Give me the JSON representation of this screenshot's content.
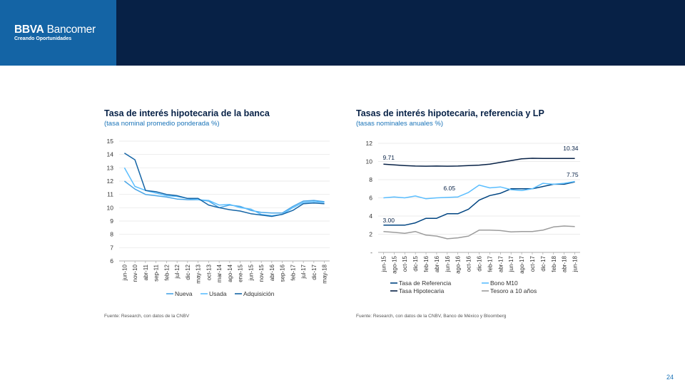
{
  "header": {
    "brand_bold": "BBVA",
    "brand_name": " Bancomer",
    "tagline": "Creando Oportunidades",
    "colors": {
      "bar": "#072146",
      "logo_bg": "#1464A5"
    }
  },
  "page_number": "24",
  "charts": [
    {
      "title": "Tasa de interés hipotecaria de la banca",
      "subtitle": "(tasa nominal  promedio ponderada %)",
      "source": "Fuente: Research, con datos de la CNBV",
      "chart_data": {
        "type": "line",
        "title": "Tasa de interés hipotecaria de la banca",
        "ylim": [
          6,
          15
        ],
        "yticks": [
          "6",
          "7",
          "8",
          "9",
          "10",
          "11",
          "12",
          "13",
          "14",
          "15"
        ],
        "categories": [
          "jun-10",
          "nov-10",
          "abr-11",
          "sep-11",
          "feb-12",
          "jul-12",
          "dic-12",
          "may-13",
          "oct-13",
          "mar-14",
          "ago-14",
          "ene-15",
          "jun-15",
          "nov-15",
          "abr-16",
          "sep-16",
          "feb-17",
          "jul-17",
          "dic-17",
          "may-18"
        ],
        "grid": true,
        "legend": "bottom",
        "series": [
          {
            "name": "Nueva",
            "color": "#49A5E6",
            "values": [
              12.0,
              11.4,
              11.0,
              10.9,
              10.8,
              10.65,
              10.6,
              10.6,
              10.5,
              10.0,
              10.2,
              10.1,
              9.8,
              9.65,
              9.6,
              9.6,
              10.1,
              10.5,
              10.55,
              10.45
            ]
          },
          {
            "name": "Usada",
            "color": "#5BBEFF",
            "values": [
              13.0,
              11.6,
              11.3,
              11.1,
              10.9,
              10.85,
              10.7,
              10.6,
              10.55,
              10.2,
              10.25,
              10.0,
              9.9,
              9.5,
              9.4,
              9.5,
              10.0,
              10.4,
              10.45,
              10.4
            ]
          },
          {
            "name": "Adquisición",
            "color": "#1464A5",
            "values": [
              14.1,
              13.6,
              11.3,
              11.2,
              11.0,
              10.9,
              10.7,
              10.7,
              10.2,
              10.0,
              9.85,
              9.75,
              9.55,
              9.45,
              9.35,
              9.5,
              9.8,
              10.3,
              10.35,
              10.3
            ]
          }
        ]
      }
    },
    {
      "title": "Tasas de interés hipotecaria, referencia y LP",
      "subtitle": "(tasas nominales  anuales %)",
      "source": "Fuente: Research, con datos de la CNBV, Banco de México y Bloomberg",
      "chart_data": {
        "type": "line",
        "title": "Tasas de interés hipotecaria, referencia y LP",
        "ylim": [
          0,
          12
        ],
        "yticks": [
          "-",
          "2",
          "4",
          "6",
          "8",
          "10",
          "12"
        ],
        "categories": [
          "jun-15",
          "ago-15",
          "oct-15",
          "dic-15",
          "feb-16",
          "abr-16",
          "jun-16",
          "ago-16",
          "oct-16",
          "dic-16",
          "feb-17",
          "abr-17",
          "jun-17",
          "ago-17",
          "oct-17",
          "dic-17",
          "feb-18",
          "abr-18",
          "jun-18"
        ],
        "grid": true,
        "legend": "bottom",
        "annotations": [
          "9.71",
          "6.05",
          "3.00",
          "10.34",
          "7.75"
        ],
        "series": [
          {
            "name": "Tasa de Referencia",
            "color": "#004481",
            "values": [
              3.0,
              3.0,
              3.0,
              3.25,
              3.75,
              3.75,
              4.25,
              4.25,
              4.75,
              5.75,
              6.25,
              6.5,
              7.0,
              7.0,
              7.0,
              7.25,
              7.5,
              7.5,
              7.75
            ]
          },
          {
            "name": "Bono M10",
            "color": "#5BBEFF",
            "values": [
              6.0,
              6.1,
              6.0,
              6.2,
              5.9,
              6.0,
              6.05,
              6.1,
              6.6,
              7.4,
              7.1,
              7.2,
              6.9,
              6.8,
              7.0,
              7.6,
              7.5,
              7.6,
              7.8
            ]
          },
          {
            "name": "Tasa Hipotecaria",
            "color": "#072146",
            "values": [
              9.71,
              9.62,
              9.55,
              9.5,
              9.48,
              9.5,
              9.48,
              9.5,
              9.55,
              9.6,
              9.7,
              9.9,
              10.1,
              10.3,
              10.35,
              10.34,
              10.34,
              10.34,
              10.34
            ]
          },
          {
            "name": "Tesoro a 10 años",
            "color": "#9C9C9C",
            "values": [
              2.3,
              2.2,
              2.1,
              2.3,
              1.9,
              1.8,
              1.5,
              1.6,
              1.8,
              2.45,
              2.45,
              2.4,
              2.25,
              2.3,
              2.3,
              2.45,
              2.8,
              2.9,
              2.85
            ]
          }
        ]
      }
    }
  ]
}
